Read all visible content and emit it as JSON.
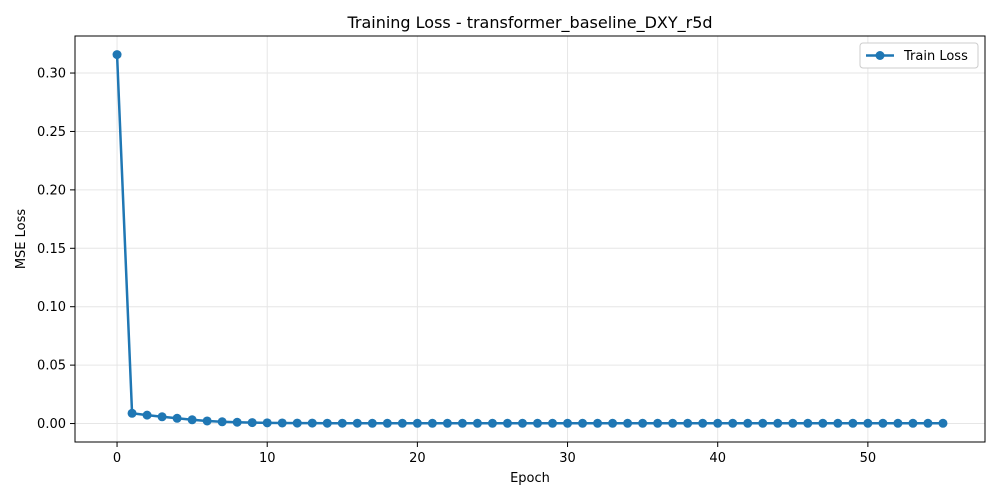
{
  "chart_data": {
    "type": "line",
    "title": "Training Loss - transformer_baseline_DXY_r5d",
    "xlabel": "Epoch",
    "ylabel": "MSE Loss",
    "xlim": [
      -2.8,
      57.8
    ],
    "ylim": [
      -0.0158,
      0.3317
    ],
    "xticks": [
      0,
      10,
      20,
      30,
      40,
      50
    ],
    "xtick_labels": [
      "0",
      "10",
      "20",
      "30",
      "40",
      "50"
    ],
    "yticks": [
      0.0,
      0.05,
      0.1,
      0.15,
      0.2,
      0.25,
      0.3
    ],
    "ytick_labels": [
      "0.00",
      "0.05",
      "0.10",
      "0.15",
      "0.20",
      "0.25",
      "0.30"
    ],
    "grid": true,
    "legend": {
      "position": "top-right",
      "entries": [
        "Train Loss"
      ]
    },
    "series": [
      {
        "name": "Train Loss",
        "color": "#1f77b4",
        "marker": "circle",
        "x": [
          0,
          1,
          2,
          3,
          4,
          5,
          6,
          7,
          8,
          9,
          10,
          11,
          12,
          13,
          14,
          15,
          16,
          17,
          18,
          19,
          20,
          21,
          22,
          23,
          24,
          25,
          26,
          27,
          28,
          29,
          30,
          31,
          32,
          33,
          34,
          35,
          36,
          37,
          38,
          39,
          40,
          41,
          42,
          43,
          44,
          45,
          46,
          47,
          48,
          49,
          50,
          51,
          52,
          53,
          54,
          55
        ],
        "y": [
          0.3158,
          0.0088,
          0.0072,
          0.0058,
          0.0045,
          0.0032,
          0.0022,
          0.0015,
          0.0011,
          0.0008,
          0.0006,
          0.0005,
          0.0004,
          0.0004,
          0.0003,
          0.0003,
          0.0003,
          0.0002,
          0.0002,
          0.0002,
          0.0002,
          0.0002,
          0.0002,
          0.0002,
          0.0002,
          0.0002,
          0.0002,
          0.0002,
          0.0002,
          0.0002,
          0.0002,
          0.0002,
          0.0002,
          0.0002,
          0.0002,
          0.0002,
          0.0002,
          0.0002,
          0.0002,
          0.0002,
          0.0002,
          0.0002,
          0.0002,
          0.0002,
          0.0002,
          0.0002,
          0.0002,
          0.0002,
          0.0002,
          0.0002,
          0.0002,
          0.0002,
          0.0002,
          0.0002,
          0.0002,
          0.0002
        ]
      }
    ]
  }
}
